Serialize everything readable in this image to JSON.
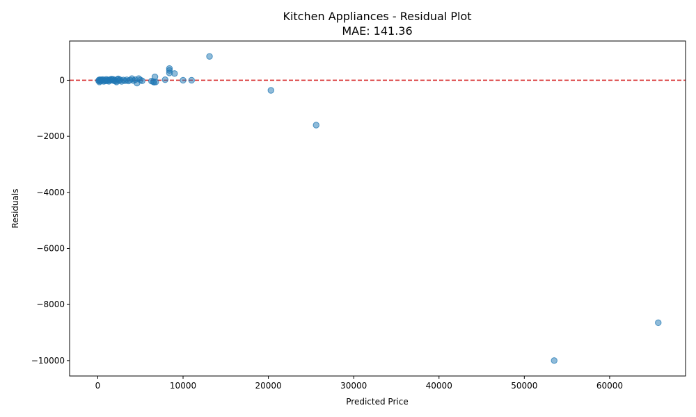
{
  "chart_data": {
    "type": "scatter",
    "title": "Kitchen Appliances - Residual Plot",
    "subtitle": "MAE: 141.36",
    "xlabel": "Predicted Price",
    "ylabel": "Residuals",
    "xlim": [
      -3300,
      68900
    ],
    "ylim": [
      -10550,
      1400
    ],
    "xticks": [
      0,
      10000,
      20000,
      30000,
      40000,
      50000,
      60000
    ],
    "xtick_labels": [
      "0",
      "10000",
      "20000",
      "30000",
      "40000",
      "50000",
      "60000"
    ],
    "yticks": [
      0,
      -2000,
      -4000,
      -6000,
      -8000,
      -10000
    ],
    "ytick_labels": [
      "0",
      "−2000",
      "−4000",
      "−6000",
      "−8000",
      "−10000"
    ],
    "reference_line": {
      "y": 0,
      "color": "#d62728",
      "style": "dashed"
    },
    "grid": false,
    "point_color": "#1f77b4",
    "point_alpha": 0.5,
    "points": [
      [
        100,
        -20
      ],
      [
        150,
        10
      ],
      [
        200,
        -60
      ],
      [
        250,
        20
      ],
      [
        300,
        -30
      ],
      [
        400,
        15
      ],
      [
        500,
        -10
      ],
      [
        600,
        25
      ],
      [
        700,
        -40
      ],
      [
        800,
        5
      ],
      [
        900,
        -25
      ],
      [
        1000,
        30
      ],
      [
        1100,
        -15
      ],
      [
        1200,
        10
      ],
      [
        1300,
        -35
      ],
      [
        1400,
        20
      ],
      [
        1500,
        -5
      ],
      [
        1600,
        40
      ],
      [
        1700,
        15
      ],
      [
        1800,
        30
      ],
      [
        1900,
        -20
      ],
      [
        2000,
        10
      ],
      [
        2100,
        -30
      ],
      [
        2200,
        -60
      ],
      [
        2300,
        25
      ],
      [
        2400,
        50
      ],
      [
        2500,
        -15
      ],
      [
        2600,
        20
      ],
      [
        2800,
        -40
      ],
      [
        3000,
        10
      ],
      [
        3200,
        -20
      ],
      [
        3400,
        15
      ],
      [
        3600,
        -25
      ],
      [
        3800,
        5
      ],
      [
        4000,
        60
      ],
      [
        4200,
        -10
      ],
      [
        4400,
        20
      ],
      [
        4600,
        -100
      ],
      [
        4800,
        60
      ],
      [
        5000,
        10
      ],
      [
        5200,
        -20
      ],
      [
        6300,
        -30
      ],
      [
        6500,
        -50
      ],
      [
        6600,
        -70
      ],
      [
        6700,
        120
      ],
      [
        6800,
        -60
      ],
      [
        7900,
        20
      ],
      [
        8400,
        420
      ],
      [
        8400,
        350
      ],
      [
        8400,
        260
      ],
      [
        9000,
        240
      ],
      [
        10000,
        0
      ],
      [
        11000,
        0
      ],
      [
        13100,
        850
      ],
      [
        20300,
        -360
      ],
      [
        25600,
        -1600
      ],
      [
        53500,
        -10000
      ],
      [
        65700,
        -8650
      ]
    ]
  }
}
